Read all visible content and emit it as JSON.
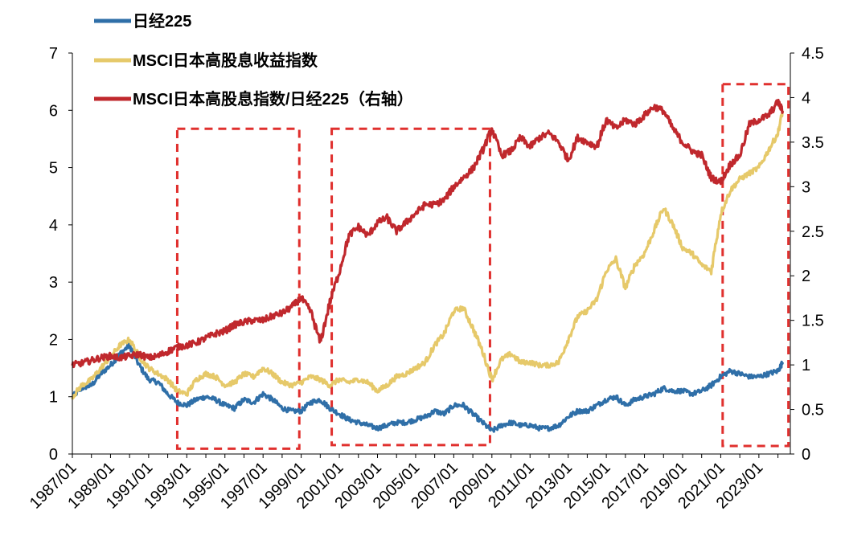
{
  "chart_data": {
    "type": "line",
    "title": "",
    "xlabel": "",
    "ylabel": "",
    "y2label": "",
    "ylim": [
      0,
      7
    ],
    "y2lim": [
      0,
      4.5
    ],
    "x_ticks": [
      "1987/01",
      "1989/01",
      "1991/01",
      "1993/01",
      "1995/01",
      "1997/01",
      "1999/01",
      "2001/01",
      "2003/01",
      "2005/01",
      "2007/01",
      "2009/01",
      "2011/01",
      "2013/01",
      "2015/01",
      "2017/01",
      "2019/01",
      "2021/01",
      "2023/01"
    ],
    "y_ticks_left": [
      "0",
      "1",
      "2",
      "3",
      "4",
      "5",
      "6",
      "7"
    ],
    "y_ticks_right": [
      "0",
      "0.5",
      "1",
      "1.5",
      "2",
      "2.5",
      "3",
      "3.5",
      "4",
      "4.5"
    ],
    "legend_position": "top-left",
    "series": [
      {
        "name": "日经225",
        "axis": "left",
        "color": "#2F6FA8",
        "x": [
          1987.0,
          1987.5,
          1988.0,
          1988.5,
          1989.0,
          1989.5,
          1990.0,
          1990.5,
          1991.0,
          1991.5,
          1992.0,
          1992.5,
          1993.0,
          1993.5,
          1994.0,
          1994.5,
          1995.0,
          1995.5,
          1996.0,
          1996.5,
          1997.0,
          1997.5,
          1998.0,
          1998.5,
          1999.0,
          1999.5,
          2000.0,
          2000.5,
          2001.0,
          2001.5,
          2002.0,
          2002.5,
          2003.0,
          2003.5,
          2004.0,
          2004.5,
          2005.0,
          2005.5,
          2006.0,
          2006.5,
          2007.0,
          2007.5,
          2008.0,
          2008.5,
          2009.0,
          2009.5,
          2010.0,
          2010.5,
          2011.0,
          2011.5,
          2012.0,
          2012.5,
          2013.0,
          2013.5,
          2014.0,
          2014.5,
          2015.0,
          2015.5,
          2016.0,
          2016.5,
          2017.0,
          2017.5,
          2018.0,
          2018.5,
          2019.0,
          2019.5,
          2020.0,
          2020.5,
          2021.0,
          2021.5,
          2022.0,
          2022.5,
          2023.0,
          2023.5,
          2024.0,
          2024.25
        ],
        "y": [
          1.0,
          1.15,
          1.2,
          1.4,
          1.55,
          1.75,
          1.9,
          1.55,
          1.3,
          1.25,
          1.05,
          0.9,
          0.85,
          0.95,
          1.0,
          0.95,
          0.85,
          0.8,
          0.95,
          0.9,
          1.05,
          0.95,
          0.8,
          0.75,
          0.75,
          0.9,
          0.95,
          0.8,
          0.7,
          0.6,
          0.55,
          0.5,
          0.45,
          0.5,
          0.55,
          0.55,
          0.6,
          0.65,
          0.75,
          0.7,
          0.85,
          0.85,
          0.7,
          0.55,
          0.4,
          0.5,
          0.55,
          0.5,
          0.5,
          0.45,
          0.45,
          0.5,
          0.65,
          0.75,
          0.75,
          0.85,
          0.95,
          1.0,
          0.85,
          0.95,
          1.0,
          1.05,
          1.15,
          1.1,
          1.1,
          1.05,
          1.1,
          1.2,
          1.35,
          1.45,
          1.4,
          1.35,
          1.35,
          1.4,
          1.45,
          1.6
        ]
      },
      {
        "name": "MSCI日本高股息收益指数",
        "axis": "left",
        "color": "#E6C96A",
        "x": [
          1987.0,
          1987.5,
          1988.0,
          1988.5,
          1989.0,
          1989.5,
          1990.0,
          1990.5,
          1991.0,
          1991.5,
          1992.0,
          1992.5,
          1993.0,
          1993.5,
          1994.0,
          1994.5,
          1995.0,
          1995.5,
          1996.0,
          1996.5,
          1997.0,
          1997.5,
          1998.0,
          1998.5,
          1999.0,
          1999.5,
          2000.0,
          2000.5,
          2001.0,
          2001.5,
          2002.0,
          2002.5,
          2003.0,
          2003.5,
          2004.0,
          2004.5,
          2005.0,
          2005.5,
          2006.0,
          2006.5,
          2007.0,
          2007.5,
          2008.0,
          2008.5,
          2009.0,
          2009.5,
          2010.0,
          2010.5,
          2011.0,
          2011.5,
          2012.0,
          2012.5,
          2013.0,
          2013.5,
          2014.0,
          2014.5,
          2015.0,
          2015.5,
          2016.0,
          2016.5,
          2017.0,
          2017.5,
          2018.0,
          2018.5,
          2019.0,
          2019.5,
          2020.0,
          2020.5,
          2021.0,
          2021.5,
          2022.0,
          2022.5,
          2023.0,
          2023.5,
          2024.0,
          2024.25
        ],
        "y": [
          1.0,
          1.2,
          1.3,
          1.5,
          1.7,
          1.9,
          2.0,
          1.7,
          1.5,
          1.4,
          1.3,
          1.1,
          1.05,
          1.3,
          1.4,
          1.35,
          1.2,
          1.25,
          1.4,
          1.35,
          1.5,
          1.4,
          1.25,
          1.2,
          1.25,
          1.35,
          1.3,
          1.2,
          1.3,
          1.25,
          1.3,
          1.25,
          1.1,
          1.2,
          1.35,
          1.4,
          1.5,
          1.6,
          1.9,
          2.1,
          2.5,
          2.55,
          2.2,
          1.8,
          1.3,
          1.65,
          1.75,
          1.6,
          1.6,
          1.55,
          1.55,
          1.6,
          2.0,
          2.4,
          2.5,
          2.7,
          3.2,
          3.4,
          2.9,
          3.3,
          3.5,
          3.9,
          4.3,
          4.0,
          3.6,
          3.5,
          3.3,
          3.2,
          4.2,
          4.6,
          4.8,
          4.9,
          5.0,
          5.3,
          5.6,
          6.0
        ]
      },
      {
        "name": "MSCI日本高股息指数/日经225（右轴）",
        "axis": "right",
        "color": "#C0282D",
        "x": [
          1987.0,
          1987.5,
          1988.0,
          1988.5,
          1989.0,
          1989.5,
          1990.0,
          1990.5,
          1991.0,
          1991.5,
          1992.0,
          1992.5,
          1993.0,
          1993.5,
          1994.0,
          1994.5,
          1995.0,
          1995.5,
          1996.0,
          1996.5,
          1997.0,
          1997.5,
          1998.0,
          1998.5,
          1999.0,
          1999.5,
          2000.0,
          2000.5,
          2001.0,
          2001.5,
          2002.0,
          2002.5,
          2003.0,
          2003.5,
          2004.0,
          2004.5,
          2005.0,
          2005.5,
          2006.0,
          2006.5,
          2007.0,
          2007.5,
          2008.0,
          2008.5,
          2009.0,
          2009.5,
          2010.0,
          2010.5,
          2011.0,
          2011.5,
          2012.0,
          2012.5,
          2013.0,
          2013.5,
          2014.0,
          2014.5,
          2015.0,
          2015.5,
          2016.0,
          2016.5,
          2017.0,
          2017.5,
          2018.0,
          2018.5,
          2019.0,
          2019.5,
          2020.0,
          2020.5,
          2021.0,
          2021.5,
          2022.0,
          2022.5,
          2023.0,
          2023.5,
          2024.0,
          2024.25
        ],
        "y": [
          1.0,
          1.02,
          1.05,
          1.08,
          1.1,
          1.08,
          1.1,
          1.12,
          1.08,
          1.1,
          1.15,
          1.2,
          1.22,
          1.25,
          1.3,
          1.35,
          1.38,
          1.45,
          1.48,
          1.5,
          1.5,
          1.55,
          1.58,
          1.65,
          1.75,
          1.6,
          1.25,
          1.7,
          2.05,
          2.45,
          2.55,
          2.45,
          2.6,
          2.65,
          2.5,
          2.6,
          2.7,
          2.8,
          2.8,
          2.85,
          3.0,
          3.1,
          3.2,
          3.4,
          3.65,
          3.35,
          3.4,
          3.55,
          3.45,
          3.55,
          3.6,
          3.5,
          3.3,
          3.55,
          3.5,
          3.45,
          3.75,
          3.65,
          3.75,
          3.7,
          3.8,
          3.9,
          3.85,
          3.65,
          3.5,
          3.4,
          3.35,
          3.1,
          3.05,
          3.25,
          3.35,
          3.7,
          3.75,
          3.8,
          3.95,
          3.85
        ]
      }
    ],
    "highlight_boxes": [
      {
        "x_start": 1992.5,
        "x_end": 1998.9,
        "y_bottom_right": 0.06,
        "y_top_right": 3.65
      },
      {
        "x_start": 2000.6,
        "x_end": 2008.9,
        "y_bottom_right": 0.1,
        "y_top_right": 3.65
      },
      {
        "x_start": 2021.1,
        "x_end": 2024.55,
        "y_bottom_right": 0.09,
        "y_top_right": 4.15
      }
    ]
  }
}
